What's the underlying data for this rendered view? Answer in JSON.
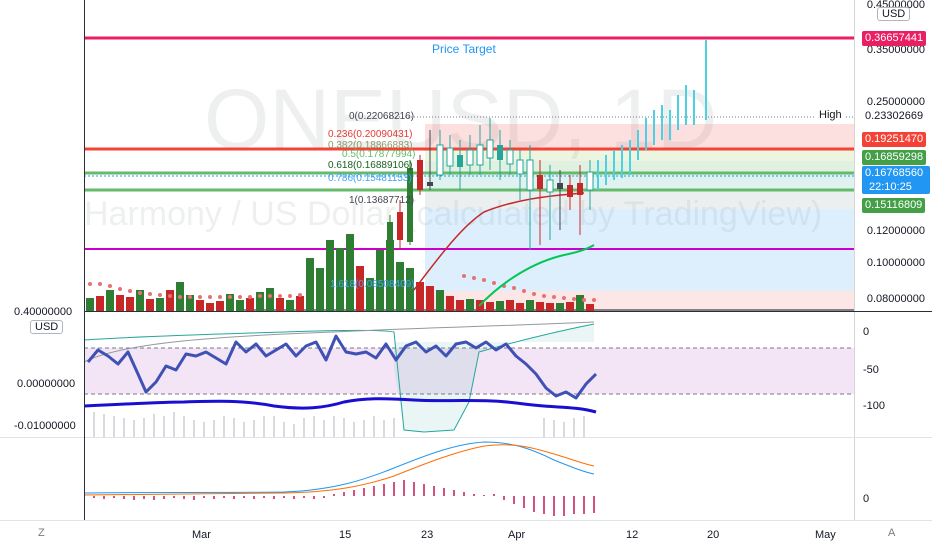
{
  "chart": {
    "watermark_symbol": "ONEUSD, 1D",
    "watermark_name": "Harmony / US Dollar (calculated by TradingView)",
    "currency": "USD",
    "price_target_label": "Price Target"
  },
  "price_axis": {
    "ticks": [
      "0.45000000",
      "0.35000000",
      "0.25000000",
      "0.12000000",
      "0.10000000",
      "0.08000000"
    ],
    "tags": {
      "top_line": "0.36657441",
      "high_label": "High",
      "high": "0.23302669",
      "red_line": "0.19251470",
      "green_upper": "0.16859298",
      "current": "0.16768560",
      "countdown": "22:10:25",
      "green_lower": "0.15116809"
    }
  },
  "fib_levels": [
    {
      "label": "0(0.22068216)",
      "color": "#434651"
    },
    {
      "label": "0.236(0.20090431)",
      "color": "#e53935"
    },
    {
      "label": "0.382(0.18866883)",
      "color": "#8d9b6a"
    },
    {
      "label": "0.5(0.17877994)",
      "color": "#66bb6a"
    },
    {
      "label": "0.618(0.16889106)",
      "color": "#1b5e20"
    },
    {
      "label": "0.786(0.15481153)",
      "color": "#42a5f5"
    },
    {
      "label": "1(0.13687712)",
      "color": "#434651"
    },
    {
      "label": "1.618(0.08508409)",
      "color": "#42a5f5"
    }
  ],
  "osc1_axis": {
    "left_ticks": [
      "0.00000000",
      "-0.01000000"
    ],
    "left_top": "0.40000000",
    "currency": "USD",
    "right_ticks": [
      "0",
      "-50",
      "-100"
    ]
  },
  "osc2_axis": {
    "right_ticks": [
      "0"
    ]
  },
  "time_axis": {
    "labels": [
      "Mar",
      "15",
      "23",
      "Apr",
      "12",
      "20",
      "May"
    ]
  },
  "corner": {
    "left_button": "Z",
    "right_button": "A"
  },
  "colors": {
    "magenta_line": "#e91e63",
    "red_line": "#f44336",
    "green_line": "#66bb6a",
    "current_tag": "#2196f3",
    "purple_line": "#cc00cc",
    "candle_up": "#4dd0e1",
    "vol_up": "#2e7d32",
    "vol_down": "#c62828"
  }
}
